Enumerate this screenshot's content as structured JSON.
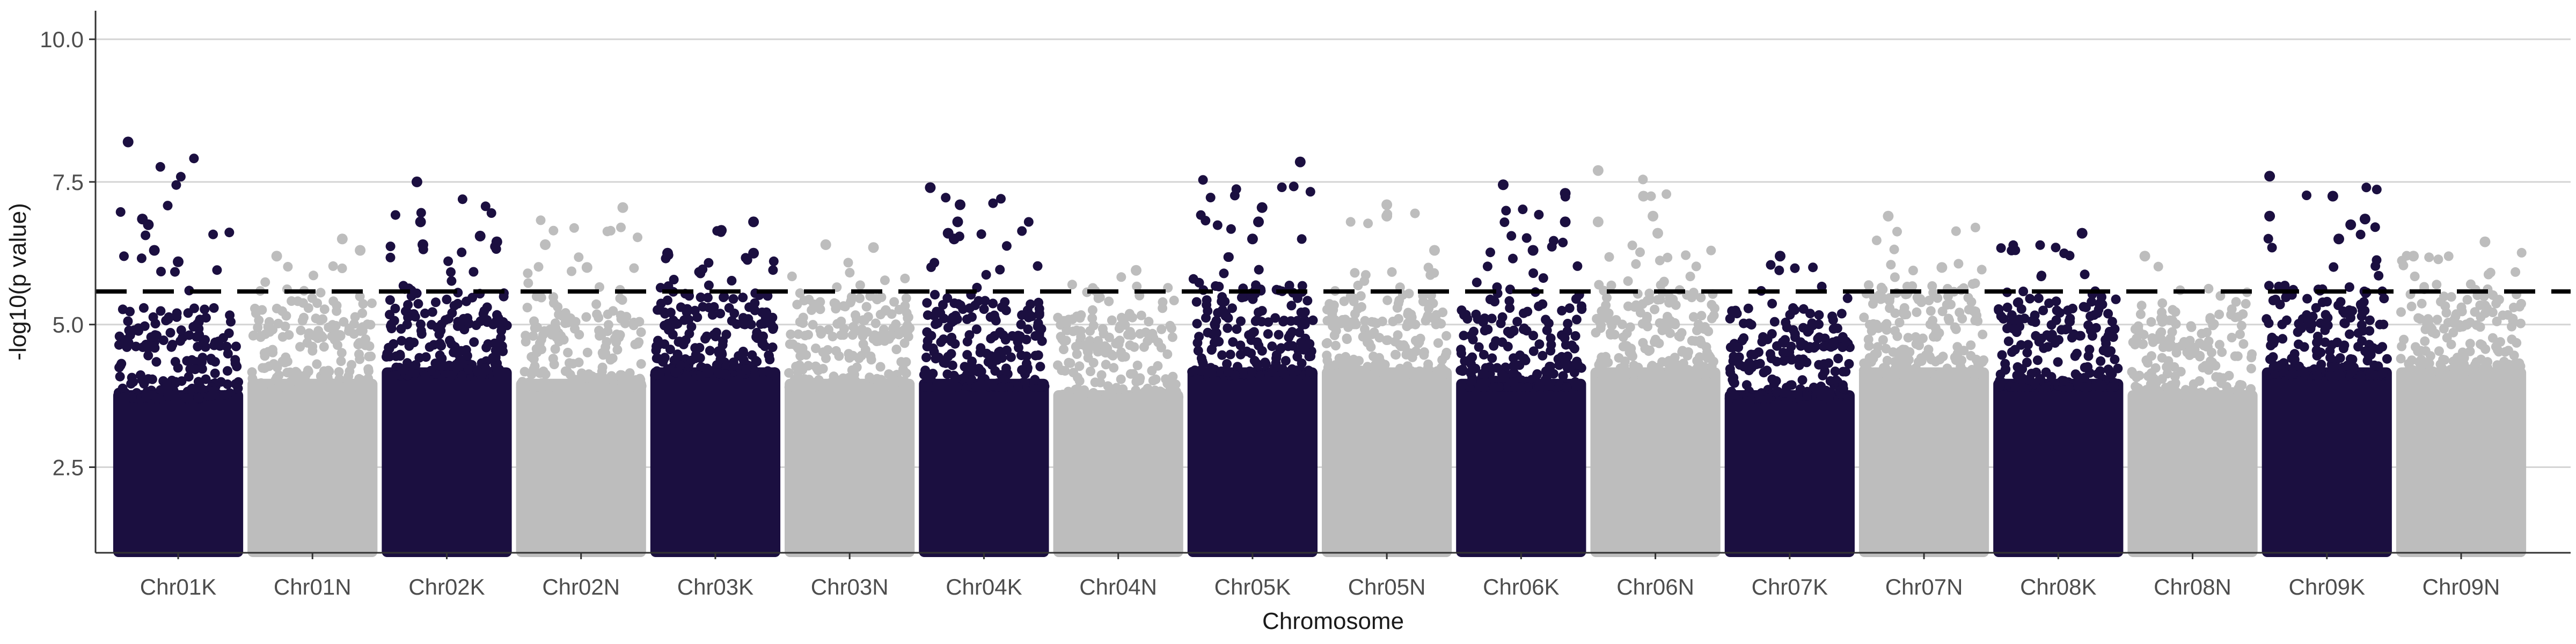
{
  "chart_data": {
    "type": "scatter",
    "subtype": "manhattan",
    "title": "",
    "xlabel": "Chromosome",
    "ylabel": "-log10(p value)",
    "ylim": [
      1,
      10.5
    ],
    "yticks": [
      2.5,
      5.0,
      7.5,
      10.0
    ],
    "ytick_labels": [
      "2.5",
      "5.0",
      "7.5",
      "10.0"
    ],
    "grid": "horizontal-major",
    "legend": "none",
    "threshold": 5.58,
    "threshold_style": "dashed",
    "colors": {
      "odd": "#1b0f40",
      "even": "#bdbdbd",
      "threshold": "#000000",
      "grid": "#d4d4d4",
      "axis": "#333333"
    },
    "categories": [
      "Chr01K",
      "Chr01N",
      "Chr02K",
      "Chr02N",
      "Chr03K",
      "Chr03N",
      "Chr04K",
      "Chr04N",
      "Chr05K",
      "Chr05N",
      "Chr06K",
      "Chr06N",
      "Chr07K",
      "Chr07N",
      "Chr08K",
      "Chr08N",
      "Chr09K",
      "Chr09N"
    ],
    "band_top": [
      4.2,
      4.4,
      4.6,
      4.4,
      4.6,
      4.4,
      4.4,
      4.2,
      4.6,
      4.6,
      4.4,
      4.6,
      4.2,
      4.6,
      4.4,
      4.2,
      4.6,
      4.6
    ],
    "max_logp": [
      8.2,
      6.5,
      7.5,
      7.0,
      6.8,
      6.4,
      7.4,
      6.0,
      7.85,
      7.1,
      7.45,
      7.7,
      6.2,
      6.9,
      6.6,
      6.2,
      7.6,
      6.45
    ],
    "top_hits": [
      {
        "chr": "Chr01K",
        "x": 0.08,
        "y": 8.2
      },
      {
        "chr": "Chr01K",
        "x": 0.2,
        "y": 6.85
      },
      {
        "chr": "Chr01K",
        "x": 0.25,
        "y": 6.75
      },
      {
        "chr": "Chr01K",
        "x": 0.5,
        "y": 6.1
      },
      {
        "chr": "Chr01K",
        "x": 0.3,
        "y": 6.3
      },
      {
        "chr": "Chr01N",
        "x": 0.75,
        "y": 6.5
      },
      {
        "chr": "Chr01N",
        "x": 0.2,
        "y": 6.2
      },
      {
        "chr": "Chr01N",
        "x": 0.9,
        "y": 6.3
      },
      {
        "chr": "Chr02K",
        "x": 0.25,
        "y": 7.5
      },
      {
        "chr": "Chr02K",
        "x": 0.28,
        "y": 6.8
      },
      {
        "chr": "Chr02K",
        "x": 0.3,
        "y": 6.4
      },
      {
        "chr": "Chr02K",
        "x": 0.78,
        "y": 6.55
      },
      {
        "chr": "Chr02K",
        "x": 0.92,
        "y": 6.45
      },
      {
        "chr": "Chr02N",
        "x": 0.85,
        "y": 7.05
      },
      {
        "chr": "Chr02N",
        "x": 0.2,
        "y": 6.4
      },
      {
        "chr": "Chr02N",
        "x": 0.55,
        "y": 6.0
      },
      {
        "chr": "Chr03K",
        "x": 0.55,
        "y": 6.65
      },
      {
        "chr": "Chr03K",
        "x": 0.82,
        "y": 6.8
      },
      {
        "chr": "Chr03K",
        "x": 0.82,
        "y": 6.25
      },
      {
        "chr": "Chr03K",
        "x": 0.1,
        "y": 6.25
      },
      {
        "chr": "Chr03N",
        "x": 0.7,
        "y": 6.35
      },
      {
        "chr": "Chr03N",
        "x": 0.3,
        "y": 6.4
      },
      {
        "chr": "Chr04K",
        "x": 0.05,
        "y": 7.4
      },
      {
        "chr": "Chr04K",
        "x": 0.3,
        "y": 7.1
      },
      {
        "chr": "Chr04K",
        "x": 0.28,
        "y": 6.8
      },
      {
        "chr": "Chr04K",
        "x": 0.2,
        "y": 6.6
      },
      {
        "chr": "Chr04K",
        "x": 0.25,
        "y": 6.5
      },
      {
        "chr": "Chr04N",
        "x": 0.65,
        "y": 5.95
      },
      {
        "chr": "Chr05K",
        "x": 0.9,
        "y": 7.85
      },
      {
        "chr": "Chr05K",
        "x": 0.58,
        "y": 7.05
      },
      {
        "chr": "Chr05K",
        "x": 0.55,
        "y": 6.8
      },
      {
        "chr": "Chr05K",
        "x": 0.5,
        "y": 6.5
      },
      {
        "chr": "Chr05N",
        "x": 0.5,
        "y": 7.1
      },
      {
        "chr": "Chr05N",
        "x": 0.5,
        "y": 6.9
      },
      {
        "chr": "Chr05N",
        "x": 0.9,
        "y": 6.3
      },
      {
        "chr": "Chr06K",
        "x": 0.35,
        "y": 7.45
      },
      {
        "chr": "Chr06K",
        "x": 0.87,
        "y": 7.3
      },
      {
        "chr": "Chr06K",
        "x": 0.87,
        "y": 6.8
      },
      {
        "chr": "Chr06K",
        "x": 0.6,
        "y": 6.3
      },
      {
        "chr": "Chr06N",
        "x": 0.02,
        "y": 7.7
      },
      {
        "chr": "Chr06N",
        "x": 0.4,
        "y": 7.25
      },
      {
        "chr": "Chr06N",
        "x": 0.48,
        "y": 6.9
      },
      {
        "chr": "Chr06N",
        "x": 0.52,
        "y": 6.6
      },
      {
        "chr": "Chr06N",
        "x": 0.02,
        "y": 6.8
      },
      {
        "chr": "Chr07K",
        "x": 0.42,
        "y": 6.2
      },
      {
        "chr": "Chr07N",
        "x": 0.2,
        "y": 6.9
      },
      {
        "chr": "Chr07N",
        "x": 0.65,
        "y": 6.0
      },
      {
        "chr": "Chr08K",
        "x": 0.7,
        "y": 6.6
      },
      {
        "chr": "Chr08N",
        "x": 0.1,
        "y": 6.2
      },
      {
        "chr": "Chr09K",
        "x": 0.02,
        "y": 7.6
      },
      {
        "chr": "Chr09K",
        "x": 0.55,
        "y": 7.25
      },
      {
        "chr": "Chr09K",
        "x": 0.02,
        "y": 6.9
      },
      {
        "chr": "Chr09K",
        "x": 0.7,
        "y": 6.75
      },
      {
        "chr": "Chr09K",
        "x": 0.82,
        "y": 6.85
      },
      {
        "chr": "Chr09K",
        "x": 0.6,
        "y": 6.5
      },
      {
        "chr": "Chr09N",
        "x": 0.7,
        "y": 6.45
      },
      {
        "chr": "Chr09N",
        "x": 0.1,
        "y": 6.2
      }
    ]
  }
}
